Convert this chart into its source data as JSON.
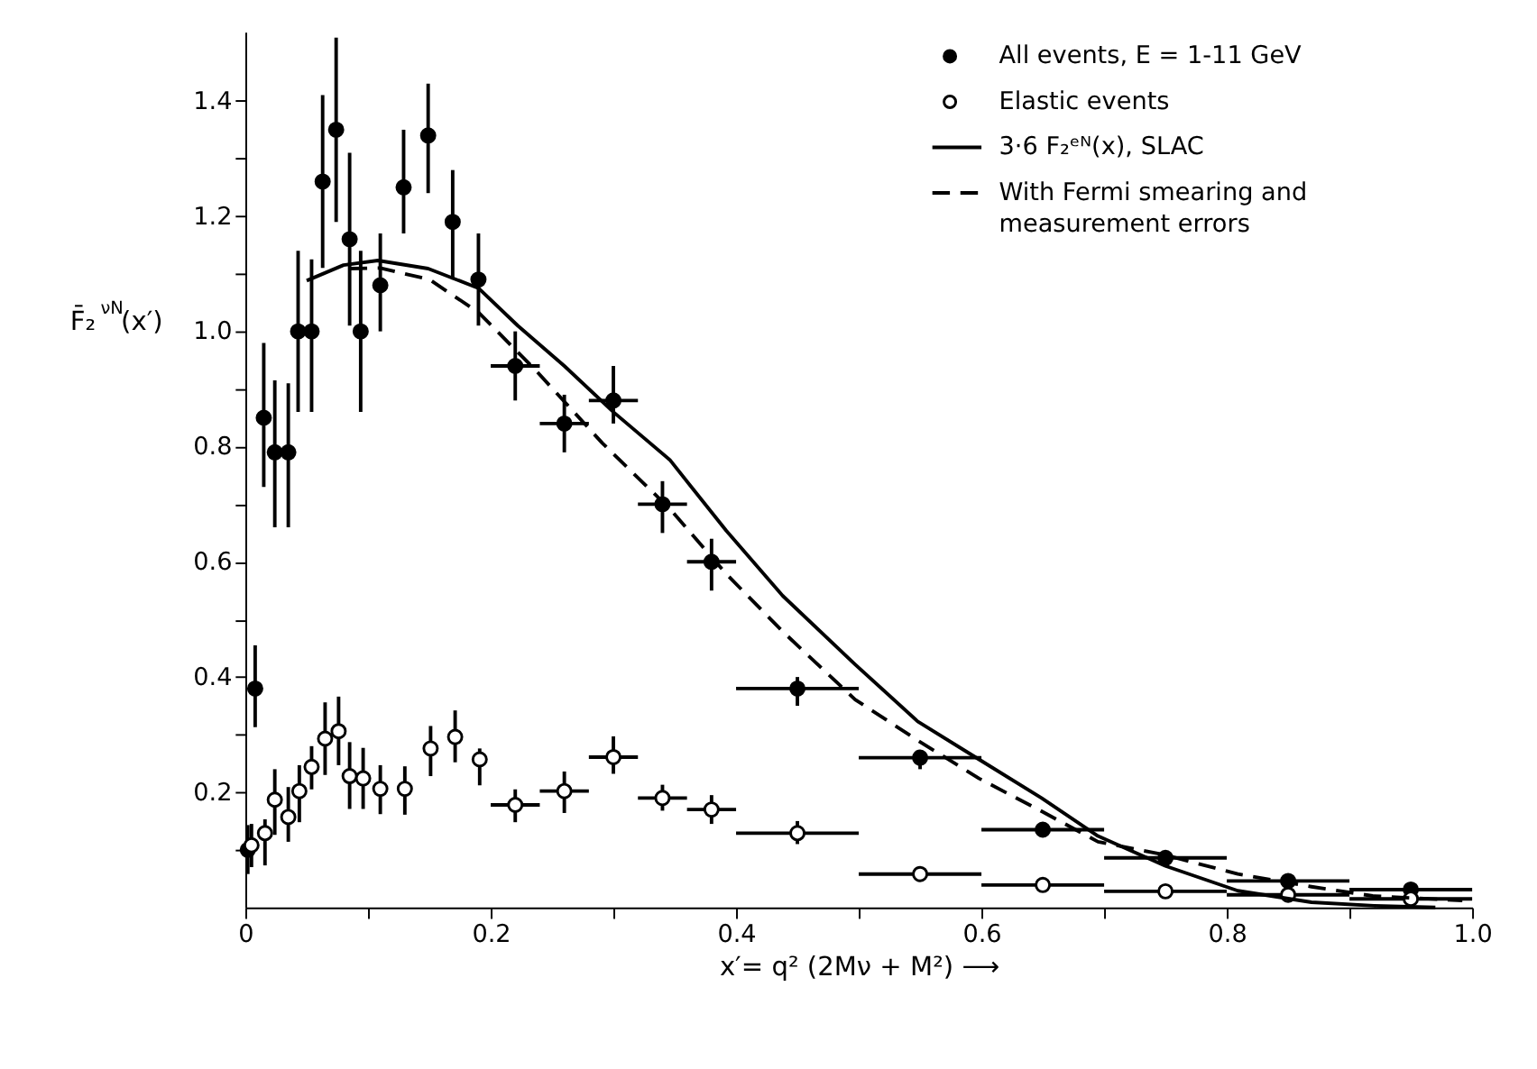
{
  "chart_data": {
    "type": "scatter",
    "xlabel": "x′= q² (2Mν + M²) ⟶",
    "ylabel": "F̄₂$^{νN}$(x′)",
    "xlim": [
      0,
      1.0
    ],
    "ylim": [
      0,
      1.52
    ],
    "xticks": [
      0,
      {
        "value": 0.1,
        "label": null
      },
      0.2,
      {
        "value": 0.3,
        "label": null
      },
      0.4,
      {
        "value": 0.5,
        "label": null
      },
      0.6,
      {
        "value": 0.7,
        "label": null
      },
      0.8,
      {
        "value": 0.9,
        "label": null
      },
      {
        "value": 1.0,
        "label": "1.0"
      }
    ],
    "yticks": [
      {
        "value": 0.1,
        "label": null
      },
      0.2,
      {
        "value": 0.3,
        "label": null
      },
      0.4,
      {
        "value": 0.5,
        "label": null
      },
      0.6,
      {
        "value": 0.7,
        "label": null
      },
      0.8,
      {
        "value": 0.9,
        "label": null
      },
      {
        "value": 1.0,
        "label": "1.0"
      },
      {
        "value": 1.1,
        "label": null
      },
      1.2,
      {
        "value": 1.3,
        "label": null
      },
      1.4
    ],
    "grid": false,
    "legend": "top right",
    "series": [
      {
        "name": "All events, E = 1-11 GeV",
        "marker": "circle",
        "color": "#000000",
        "x": [
          0.002,
          0.008,
          0.015,
          0.024,
          0.035,
          0.043,
          0.054,
          0.063,
          0.074,
          0.085,
          0.094,
          0.11,
          0.129,
          0.149,
          0.169,
          0.19,
          0.22,
          0.26,
          0.3,
          0.34,
          0.38,
          0.45,
          0.55,
          0.65,
          0.75,
          0.85,
          0.95
        ],
        "values": [
          0.1,
          0.38,
          0.85,
          0.79,
          0.79,
          1.0,
          1.0,
          1.26,
          1.35,
          1.16,
          1.0,
          1.08,
          1.25,
          1.34,
          1.19,
          1.09,
          0.94,
          0.84,
          0.88,
          0.7,
          0.6,
          0.38,
          0.26,
          0.135,
          0.086,
          0.046,
          0.031
        ],
        "errors": [
          [
            0.058,
            0.143
          ],
          [
            0.313,
            0.455
          ],
          [
            0.73,
            0.98
          ],
          [
            0.66,
            0.915
          ],
          [
            0.66,
            0.91
          ],
          [
            0.86,
            1.14
          ],
          [
            0.86,
            1.125
          ],
          [
            1.11,
            1.41
          ],
          [
            1.19,
            1.51
          ],
          [
            1.01,
            1.31
          ],
          [
            0.86,
            1.14
          ],
          [
            1.0,
            1.17
          ],
          [
            1.17,
            1.35
          ],
          [
            1.24,
            1.43
          ],
          [
            1.09,
            1.28
          ],
          [
            1.01,
            1.17
          ],
          [
            0.88,
            1.0
          ],
          [
            0.79,
            0.89
          ],
          [
            0.84,
            0.94
          ],
          [
            0.65,
            0.74
          ],
          [
            0.55,
            0.64
          ],
          [
            0.35,
            0.4
          ],
          [
            0.24,
            0.27
          ],
          [
            0.125,
            0.148
          ],
          null,
          null,
          null
        ],
        "xerrors": [
          null,
          null,
          null,
          null,
          null,
          null,
          null,
          null,
          null,
          null,
          null,
          null,
          null,
          null,
          null,
          null,
          [
            0.2,
            0.24
          ],
          [
            0.24,
            0.28
          ],
          [
            0.28,
            0.32
          ],
          [
            0.32,
            0.36
          ],
          [
            0.36,
            0.4
          ],
          [
            0.4,
            0.5
          ],
          [
            0.5,
            0.6
          ],
          [
            0.6,
            0.7
          ],
          [
            0.7,
            0.8
          ],
          [
            0.8,
            0.9
          ],
          [
            0.9,
            1.0
          ]
        ]
      },
      {
        "name": "Elastic events",
        "marker": "circle",
        "color": "#000000",
        "x": [
          0.005,
          0.016,
          0.024,
          0.035,
          0.044,
          0.054,
          0.065,
          0.076,
          0.085,
          0.096,
          0.11,
          0.13,
          0.151,
          0.171,
          0.191,
          0.22,
          0.26,
          0.3,
          0.34,
          0.38,
          0.45,
          0.55,
          0.65,
          0.75,
          0.85,
          0.95
        ],
        "values": [
          0.108,
          0.129,
          0.187,
          0.157,
          0.202,
          0.244,
          0.293,
          0.306,
          0.228,
          0.224,
          0.206,
          0.206,
          0.276,
          0.296,
          0.257,
          0.178,
          0.202,
          0.261,
          0.19,
          0.17,
          0.129,
          0.058,
          0.039,
          0.028,
          0.022,
          0.015
        ],
        "errors": [
          [
            0.07,
            0.145
          ],
          [
            0.073,
            0.153
          ],
          [
            0.126,
            0.24
          ],
          [
            0.114,
            0.209
          ],
          [
            0.148,
            0.247
          ],
          [
            0.205,
            0.28
          ],
          [
            0.23,
            0.356
          ],
          [
            0.247,
            0.366
          ],
          [
            0.171,
            0.287
          ],
          [
            0.171,
            0.277
          ],
          [
            0.162,
            0.247
          ],
          [
            0.161,
            0.245
          ],
          [
            0.228,
            0.315
          ],
          [
            0.252,
            0.342
          ],
          [
            0.212,
            0.276
          ],
          [
            0.148,
            0.205
          ],
          [
            0.164,
            0.236
          ],
          [
            0.232,
            0.297
          ],
          [
            0.168,
            0.213
          ],
          [
            0.145,
            0.195
          ],
          [
            0.11,
            0.15
          ],
          [
            0.045,
            0.07
          ],
          null,
          null,
          null,
          null
        ],
        "xerrors": [
          null,
          null,
          null,
          null,
          null,
          null,
          null,
          null,
          null,
          null,
          null,
          null,
          null,
          null,
          null,
          [
            0.2,
            0.24
          ],
          [
            0.24,
            0.28
          ],
          [
            0.28,
            0.32
          ],
          [
            0.32,
            0.36
          ],
          [
            0.36,
            0.4
          ],
          [
            0.4,
            0.5
          ],
          [
            0.5,
            0.6
          ],
          [
            0.6,
            0.7
          ],
          [
            0.7,
            0.8
          ],
          [
            0.8,
            0.9
          ],
          [
            0.9,
            1.0
          ]
        ]
      },
      {
        "name": "3·6 F₂ᵉᴺ(x), SLAC",
        "type": "line",
        "color": "#000000",
        "line_style": "solid",
        "x": [
          0.05,
          0.08,
          0.108,
          0.149,
          0.19,
          0.222,
          0.26,
          0.3,
          0.346,
          0.392,
          0.438,
          0.497,
          0.548,
          0.598,
          0.649,
          0.695,
          0.75,
          0.809,
          0.869,
          0.92,
          0.97
        ],
        "values": [
          1.088,
          1.115,
          1.123,
          1.109,
          1.075,
          1.01,
          0.94,
          0.86,
          0.777,
          0.654,
          0.541,
          0.422,
          0.323,
          0.257,
          0.19,
          0.124,
          0.072,
          0.029,
          0.009,
          0.003,
          0.0
        ]
      },
      {
        "name": "With Fermi smearing and measurement errors",
        "type": "line",
        "color": "#000000",
        "line_style": "dashed",
        "x": [
          0.085,
          0.11,
          0.15,
          0.19,
          0.236,
          0.291,
          0.346,
          0.392,
          0.438,
          0.497,
          0.548,
          0.598,
          0.649,
          0.695,
          0.75,
          0.809,
          0.869,
          0.919,
          0.992
        ],
        "values": [
          1.109,
          1.11,
          1.09,
          1.033,
          0.934,
          0.806,
          0.692,
          0.579,
          0.479,
          0.361,
          0.29,
          0.224,
          0.167,
          0.114,
          0.091,
          0.058,
          0.036,
          0.02,
          0.012
        ]
      }
    ]
  }
}
